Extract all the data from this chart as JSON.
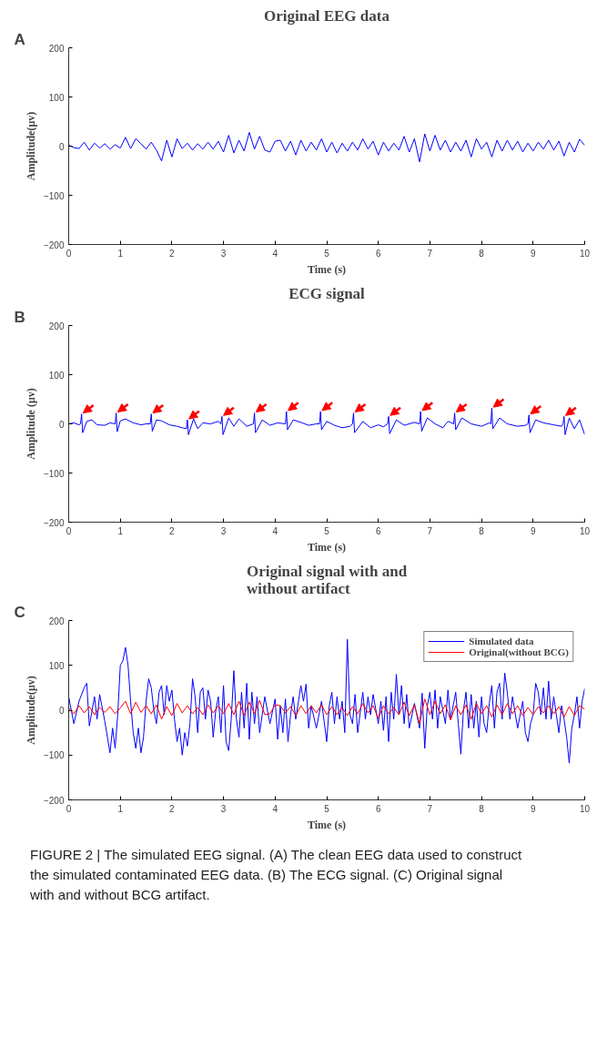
{
  "chart_data": [
    {
      "type": "line",
      "title": "Original EEG data",
      "xlabel": "Time (s)",
      "ylabel": "Amplitude(μv)",
      "annotations": [
        "A"
      ],
      "xlim": [
        0,
        10
      ],
      "ylim": [
        -200,
        200
      ],
      "xticks": [
        0,
        1,
        2,
        3,
        4,
        5,
        6,
        7,
        8,
        9,
        10
      ],
      "yticks": [
        -200,
        -100,
        0,
        100,
        200
      ],
      "grid": false,
      "legend": false,
      "series": [
        {
          "color": "#0000ff",
          "x": [
            0,
            0.1,
            0.2,
            0.3,
            0.4,
            0.5,
            0.6,
            0.7,
            0.8,
            0.9,
            1.0,
            1.1,
            1.2,
            1.3,
            1.4,
            1.5,
            1.6,
            1.7,
            1.8,
            1.9,
            2.0,
            2.1,
            2.2,
            2.3,
            2.4,
            2.5,
            2.6,
            2.7,
            2.8,
            2.9,
            3.0,
            3.1,
            3.2,
            3.3,
            3.4,
            3.5,
            3.6,
            3.7,
            3.8,
            3.9,
            4.0,
            4.1,
            4.2,
            4.3,
            4.4,
            4.5,
            4.6,
            4.7,
            4.8,
            4.9,
            5.0,
            5.1,
            5.2,
            5.3,
            5.4,
            5.5,
            5.6,
            5.7,
            5.8,
            5.9,
            6.0,
            6.1,
            6.2,
            6.3,
            6.4,
            6.5,
            6.6,
            6.7,
            6.8,
            6.9,
            7.0,
            7.1,
            7.2,
            7.3,
            7.4,
            7.5,
            7.6,
            7.7,
            7.8,
            7.9,
            8.0,
            8.1,
            8.2,
            8.3,
            8.4,
            8.5,
            8.6,
            8.7,
            8.8,
            8.9,
            9.0,
            9.1,
            9.2,
            9.3,
            9.4,
            9.5,
            9.6,
            9.7,
            9.8,
            9.9,
            10
          ],
          "values": [
            2,
            -3,
            -5,
            8,
            -8,
            6,
            -4,
            5,
            -6,
            3,
            -4,
            18,
            -5,
            15,
            5,
            -6,
            8,
            -8,
            -30,
            12,
            -22,
            15,
            -5,
            6,
            -8,
            5,
            -6,
            8,
            -6,
            10,
            -12,
            22,
            -14,
            12,
            -10,
            28,
            -6,
            20,
            -8,
            -12,
            10,
            12,
            -10,
            10,
            -18,
            12,
            -10,
            8,
            -8,
            15,
            -12,
            8,
            -14,
            6,
            -10,
            8,
            -8,
            15,
            -6,
            10,
            -18,
            8,
            -10,
            6,
            -8,
            20,
            -12,
            15,
            -32,
            25,
            -10,
            22,
            -8,
            12,
            -12,
            8,
            -10,
            12,
            -22,
            15,
            -6,
            8,
            -22,
            12,
            -10,
            12,
            -8,
            10,
            -12,
            6,
            -10,
            8,
            -6,
            12,
            -8,
            10,
            -20,
            8,
            -12,
            14,
            2
          ]
        }
      ]
    },
    {
      "type": "line",
      "title": "ECG signal",
      "xlabel": "Time (s)",
      "ylabel": "Amplitude (μv)",
      "annotations": [
        "B"
      ],
      "xlim": [
        0,
        10
      ],
      "ylim": [
        -200,
        200
      ],
      "xticks": [
        0,
        1,
        2,
        3,
        4,
        5,
        6,
        7,
        8,
        9,
        10
      ],
      "yticks": [
        -200,
        -100,
        0,
        100,
        200
      ],
      "grid": false,
      "legend": false,
      "series": [
        {
          "color": "#0000ff",
          "x": [
            0,
            0.1,
            0.2,
            0.23,
            0.25,
            0.27,
            0.35,
            0.45,
            0.55,
            0.7,
            0.8,
            0.9,
            0.92,
            0.94,
            1.0,
            1.1,
            1.25,
            1.4,
            1.5,
            1.58,
            1.6,
            1.62,
            1.7,
            1.8,
            1.95,
            2.1,
            2.2,
            2.28,
            2.3,
            2.32,
            2.42,
            2.5,
            2.6,
            2.75,
            2.9,
            2.95,
            2.97,
            2.99,
            3.1,
            3.2,
            3.3,
            3.45,
            3.58,
            3.6,
            3.62,
            3.75,
            3.9,
            4.05,
            4.2,
            4.22,
            4.24,
            4.35,
            4.5,
            4.65,
            4.8,
            4.86,
            4.88,
            4.9,
            5.0,
            5.15,
            5.3,
            5.45,
            5.5,
            5.52,
            5.54,
            5.7,
            5.85,
            6.0,
            6.1,
            6.18,
            6.2,
            6.22,
            6.35,
            6.5,
            6.7,
            6.8,
            6.82,
            6.84,
            6.95,
            7.1,
            7.25,
            7.35,
            7.46,
            7.48,
            7.5,
            7.62,
            7.8,
            8.0,
            8.15,
            8.18,
            8.2,
            8.22,
            8.35,
            8.5,
            8.7,
            8.85,
            8.9,
            8.92,
            8.94,
            9.05,
            9.2,
            9.4,
            9.55,
            9.58,
            9.6,
            9.62,
            9.7,
            9.8,
            9.9,
            10
          ],
          "values": [
            0,
            2,
            -2,
            0,
            20,
            -18,
            5,
            8,
            -2,
            -3,
            2,
            0,
            22,
            -16,
            6,
            10,
            2,
            -2,
            0,
            0,
            20,
            -15,
            8,
            6,
            -2,
            -5,
            -8,
            -10,
            8,
            -22,
            10,
            -10,
            2,
            0,
            5,
            0,
            15,
            -22,
            12,
            -5,
            10,
            -5,
            0,
            22,
            -18,
            8,
            -3,
            2,
            0,
            25,
            -12,
            8,
            3,
            -3,
            0,
            0,
            25,
            -12,
            5,
            -3,
            -8,
            -5,
            0,
            22,
            -18,
            5,
            -8,
            -2,
            -6,
            0,
            15,
            -20,
            8,
            -3,
            3,
            0,
            25,
            -15,
            12,
            0,
            -8,
            5,
            0,
            22,
            -12,
            12,
            0,
            -5,
            2,
            0,
            32,
            -10,
            12,
            0,
            -5,
            -3,
            0,
            18,
            -18,
            8,
            2,
            -2,
            -5,
            0,
            15,
            -22,
            12,
            -10,
            8,
            -22
          ]
        }
      ]
    },
    {
      "type": "line",
      "title": "Original signal with and\nwithout artifact",
      "xlabel": "Time (s)",
      "ylabel": "Amplitude(μv)",
      "annotations": [
        "C",
        "FIGURE 2 | The simulated EEG signal. (A) The clean EEG data used to construct the simulated contaminated EEG data. (B) The ECG signal. (C) Original signal with and without BCG artifact."
      ],
      "xlim": [
        0,
        10
      ],
      "ylim": [
        -200,
        200
      ],
      "xticks": [
        0,
        1,
        2,
        3,
        4,
        5,
        6,
        7,
        8,
        9,
        10
      ],
      "yticks": [
        -200,
        -100,
        0,
        100,
        200
      ],
      "grid": false,
      "legend": "top right",
      "series": [
        {
          "name": "Simulated data",
          "color": "#0000ff",
          "x": [
            0,
            0.1,
            0.2,
            0.3,
            0.35,
            0.4,
            0.5,
            0.55,
            0.6,
            0.7,
            0.8,
            0.85,
            0.9,
            0.95,
            1.0,
            1.05,
            1.1,
            1.15,
            1.2,
            1.25,
            1.3,
            1.35,
            1.4,
            1.45,
            1.5,
            1.55,
            1.6,
            1.65,
            1.7,
            1.75,
            1.8,
            1.85,
            1.9,
            1.95,
            2.0,
            2.05,
            2.1,
            2.15,
            2.2,
            2.25,
            2.3,
            2.35,
            2.4,
            2.45,
            2.5,
            2.55,
            2.6,
            2.65,
            2.7,
            2.75,
            2.8,
            2.85,
            2.9,
            2.95,
            3.0,
            3.05,
            3.1,
            3.15,
            3.2,
            3.25,
            3.3,
            3.35,
            3.4,
            3.45,
            3.5,
            3.55,
            3.6,
            3.65,
            3.7,
            3.8,
            3.9,
            4.0,
            4.05,
            4.1,
            4.15,
            4.2,
            4.25,
            4.3,
            4.35,
            4.4,
            4.5,
            4.55,
            4.6,
            4.65,
            4.7,
            4.8,
            4.9,
            5.0,
            5.05,
            5.1,
            5.15,
            5.2,
            5.25,
            5.3,
            5.35,
            5.4,
            5.45,
            5.5,
            5.55,
            5.6,
            5.7,
            5.75,
            5.8,
            5.85,
            5.9,
            6.0,
            6.05,
            6.1,
            6.15,
            6.2,
            6.25,
            6.3,
            6.35,
            6.4,
            6.45,
            6.5,
            6.55,
            6.6,
            6.7,
            6.8,
            6.85,
            6.9,
            6.95,
            7.0,
            7.05,
            7.1,
            7.15,
            7.2,
            7.3,
            7.35,
            7.4,
            7.5,
            7.55,
            7.6,
            7.65,
            7.7,
            7.75,
            7.8,
            7.85,
            7.9,
            7.95,
            8.0,
            8.05,
            8.1,
            8.15,
            8.2,
            8.25,
            8.3,
            8.35,
            8.4,
            8.45,
            8.5,
            8.55,
            8.6,
            8.7,
            8.8,
            8.85,
            8.9,
            8.95,
            9.0,
            9.05,
            9.1,
            9.15,
            9.2,
            9.25,
            9.3,
            9.35,
            9.4,
            9.5,
            9.55,
            9.6,
            9.65,
            9.7,
            9.75,
            9.8,
            9.85,
            9.9,
            9.95,
            10
          ],
          "values": [
            30,
            -30,
            20,
            50,
            60,
            -35,
            30,
            -20,
            35,
            -25,
            -95,
            -40,
            -85,
            -10,
            100,
            110,
            140,
            100,
            20,
            -50,
            -85,
            -40,
            -95,
            -60,
            20,
            70,
            50,
            0,
            -30,
            40,
            55,
            -10,
            55,
            20,
            45,
            -20,
            -70,
            -40,
            -100,
            -50,
            -80,
            -30,
            70,
            30,
            -50,
            40,
            50,
            -20,
            45,
            20,
            -60,
            0,
            30,
            -50,
            55,
            -70,
            -90,
            -20,
            88,
            -20,
            -60,
            40,
            -40,
            60,
            -65,
            40,
            -30,
            30,
            -50,
            30,
            -30,
            25,
            -65,
            10,
            -50,
            25,
            -70,
            -10,
            30,
            -20,
            55,
            20,
            58,
            -40,
            10,
            -40,
            20,
            -70,
            10,
            40,
            -30,
            30,
            -20,
            20,
            -50,
            158,
            -10,
            -30,
            35,
            -50,
            40,
            -20,
            30,
            -10,
            35,
            -30,
            20,
            -45,
            30,
            -70,
            40,
            -20,
            80,
            -10,
            55,
            -30,
            35,
            -40,
            15,
            -40,
            38,
            -85,
            10,
            40,
            -20,
            45,
            -40,
            30,
            -30,
            45,
            -20,
            40,
            -30,
            -98,
            0,
            40,
            -40,
            35,
            -40,
            20,
            -60,
            30,
            -30,
            -50,
            15,
            55,
            -40,
            40,
            60,
            -20,
            83,
            40,
            -20,
            30,
            -40,
            20,
            -50,
            -70,
            -30,
            -10,
            60,
            40,
            -10,
            50,
            -20,
            65,
            -20,
            30,
            -50,
            10,
            -20,
            -60,
            -118,
            -40,
            -10,
            30,
            -40,
            20,
            48
          ]
        },
        {
          "name": "Original(without BCG)",
          "color": "#ff0000",
          "x": [
            0,
            0.1,
            0.2,
            0.3,
            0.4,
            0.5,
            0.6,
            0.7,
            0.8,
            0.9,
            1.0,
            1.1,
            1.2,
            1.3,
            1.4,
            1.5,
            1.6,
            1.7,
            1.8,
            1.9,
            2.0,
            2.1,
            2.2,
            2.3,
            2.4,
            2.5,
            2.6,
            2.7,
            2.8,
            2.9,
            3.0,
            3.1,
            3.2,
            3.3,
            3.4,
            3.5,
            3.6,
            3.7,
            3.8,
            3.9,
            4.0,
            4.1,
            4.2,
            4.3,
            4.4,
            4.5,
            4.6,
            4.7,
            4.8,
            4.9,
            5.0,
            5.1,
            5.2,
            5.3,
            5.4,
            5.5,
            5.6,
            5.7,
            5.8,
            5.9,
            6.0,
            6.1,
            6.2,
            6.3,
            6.4,
            6.5,
            6.6,
            6.7,
            6.8,
            6.9,
            7.0,
            7.1,
            7.2,
            7.3,
            7.4,
            7.5,
            7.6,
            7.7,
            7.8,
            7.9,
            8.0,
            8.1,
            8.2,
            8.3,
            8.4,
            8.5,
            8.6,
            8.7,
            8.8,
            8.9,
            9.0,
            9.1,
            9.2,
            9.3,
            9.4,
            9.5,
            9.6,
            9.7,
            9.8,
            9.9,
            10
          ],
          "values": [
            5,
            -8,
            10,
            -6,
            8,
            -10,
            6,
            -5,
            8,
            -8,
            5,
            20,
            -8,
            18,
            -5,
            10,
            -8,
            12,
            -20,
            8,
            -12,
            15,
            -6,
            10,
            -8,
            6,
            -10,
            12,
            -6,
            10,
            -8,
            15,
            -10,
            20,
            -12,
            18,
            -8,
            22,
            -10,
            -8,
            12,
            10,
            -6,
            8,
            -12,
            10,
            -8,
            10,
            -6,
            12,
            -10,
            8,
            -10,
            6,
            -12,
            8,
            -8,
            15,
            -6,
            10,
            -18,
            10,
            -8,
            6,
            -10,
            18,
            -12,
            12,
            -30,
            25,
            -10,
            20,
            -8,
            12,
            -22,
            10,
            -10,
            12,
            -20,
            15,
            -8,
            10,
            -15,
            12,
            -10,
            15,
            -8,
            10,
            -12,
            6,
            -10,
            8,
            -6,
            10,
            -8,
            8,
            -15,
            8,
            -12,
            10,
            2
          ]
        }
      ]
    }
  ]
}
